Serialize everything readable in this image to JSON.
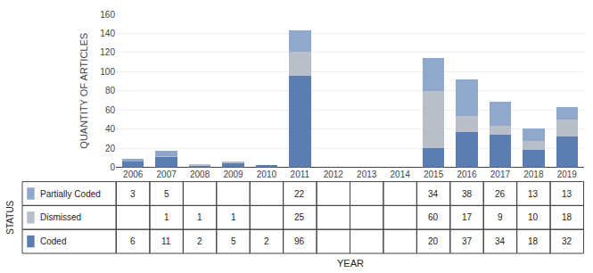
{
  "chart_data": {
    "type": "bar",
    "stacked": true,
    "categories": [
      "2006",
      "2007",
      "2008",
      "2009",
      "2010",
      "2011",
      "2012",
      "2013",
      "2014",
      "2015",
      "2016",
      "2017",
      "2018",
      "2019"
    ],
    "series": [
      {
        "name": "Coded",
        "color": "#5b7db1",
        "values": [
          6,
          11,
          2,
          5,
          2,
          96,
          0,
          0,
          0,
          20,
          37,
          34,
          18,
          32
        ]
      },
      {
        "name": "Dismissed",
        "color": "#b8bfc9",
        "values": [
          0,
          1,
          1,
          1,
          0,
          25,
          0,
          0,
          0,
          60,
          17,
          9,
          10,
          18
        ]
      },
      {
        "name": "Partially Coded",
        "color": "#8fa8cc",
        "values": [
          3,
          5,
          0,
          0,
          0,
          22,
          0,
          0,
          0,
          34,
          38,
          26,
          13,
          13
        ]
      }
    ],
    "ylabel": "QUANTITY OF ARTICLES",
    "xlabel": "YEAR",
    "ylim": [
      0,
      160
    ],
    "yticks": [
      0,
      20,
      40,
      60,
      80,
      100,
      120,
      140,
      160
    ],
    "grid": true,
    "annotations": [
      "STATUS"
    ]
  }
}
